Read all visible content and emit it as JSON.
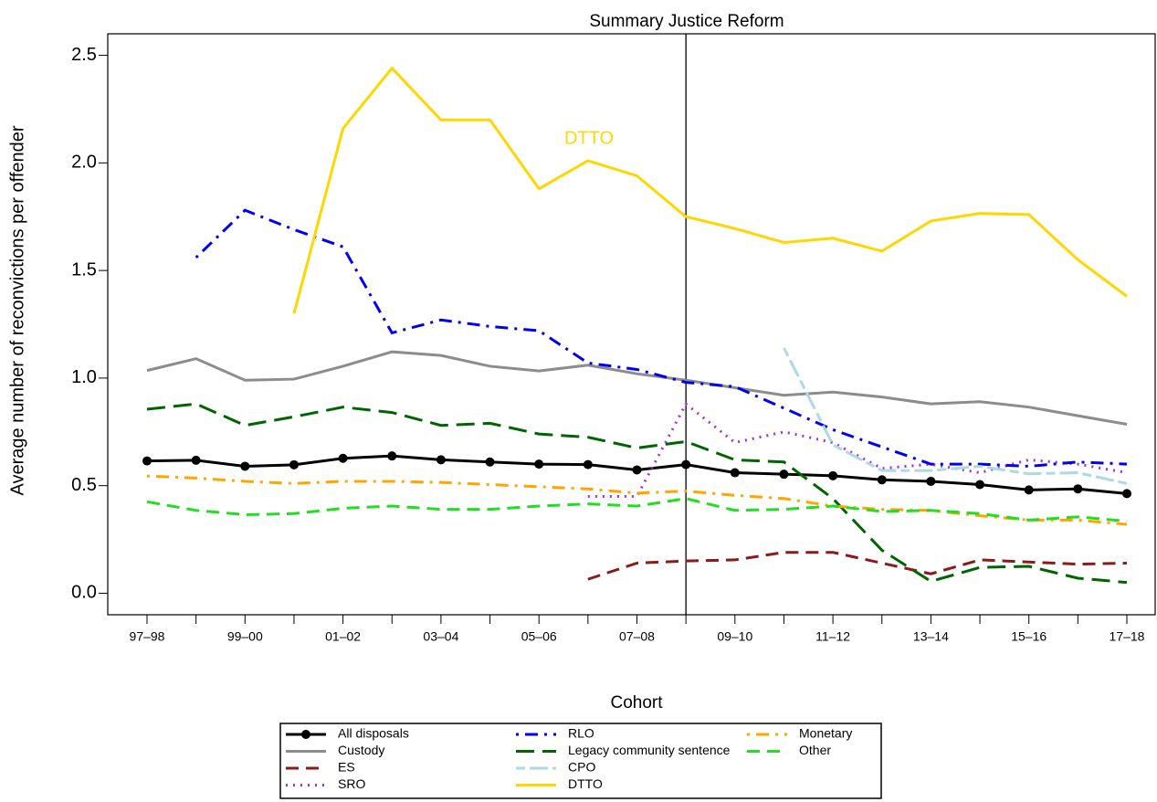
{
  "chart_data": {
    "type": "line",
    "annotations": {
      "reform": "Summary Justice Reform",
      "dtto": "DTTO"
    },
    "xlabel": "Cohort",
    "ylabel": "Average number of reconvictions per offender",
    "categories": [
      "97–98",
      null,
      "99–00",
      null,
      "01–02",
      null,
      "03–04",
      null,
      "05–06",
      null,
      "07–08",
      null,
      "09–10",
      null,
      "11–12",
      null,
      "13–14",
      null,
      "15–16",
      null,
      "17–18"
    ],
    "ylim": [
      -0.1,
      2.6
    ],
    "yticks": [
      {
        "value": 0,
        "label": "0.0"
      },
      0.5,
      {
        "value": 1,
        "label": "1.0"
      },
      1.5,
      {
        "value": 2,
        "label": "2.0"
      },
      2.5
    ],
    "reform_index": 11,
    "series": [
      {
        "name": "All disposals",
        "color": "#000000",
        "dash": "solid",
        "marker": "circle",
        "values": [
          0.615,
          0.618,
          0.59,
          0.597,
          0.627,
          0.638,
          0.62,
          0.61,
          0.6,
          0.598,
          0.573,
          0.598,
          0.56,
          0.553,
          0.546,
          0.527,
          0.52,
          0.505,
          0.48,
          0.485,
          0.463
        ]
      },
      {
        "name": "Custody",
        "color": "#8c8c8c",
        "dash": "solid",
        "values": [
          1.035,
          1.09,
          0.99,
          0.995,
          1.055,
          1.122,
          1.105,
          1.055,
          1.033,
          1.06,
          1.02,
          0.99,
          0.955,
          0.92,
          0.935,
          0.912,
          0.88,
          0.89,
          0.865,
          0.825,
          0.785
        ]
      },
      {
        "name": "ES",
        "color": "#8b1a1a",
        "dash": "dashed",
        "values": [
          null,
          null,
          null,
          null,
          null,
          null,
          null,
          null,
          null,
          0.065,
          0.14,
          0.15,
          0.155,
          0.19,
          0.19,
          0.14,
          0.09,
          0.155,
          0.145,
          0.135,
          0.14
        ]
      },
      {
        "name": "SRO",
        "color": "#a030e0",
        "dash": "dotted",
        "values": [
          null,
          null,
          null,
          null,
          null,
          null,
          null,
          null,
          null,
          0.45,
          0.45,
          0.88,
          0.7,
          0.75,
          0.7,
          0.58,
          0.6,
          0.56,
          0.62,
          0.6,
          0.56
        ]
      },
      {
        "name": "RLO",
        "color": "#0000ee",
        "dash": "dotdash",
        "values": [
          null,
          1.56,
          1.78,
          1.69,
          1.61,
          1.21,
          1.27,
          1.24,
          1.22,
          1.07,
          1.04,
          0.98,
          0.96,
          0.86,
          0.76,
          0.68,
          0.6,
          0.6,
          0.59,
          0.61,
          0.6
        ]
      },
      {
        "name": "Legacy community sentence",
        "color": "#006400",
        "dash": "longdash",
        "values": [
          0.855,
          0.88,
          0.78,
          0.82,
          0.865,
          0.84,
          0.78,
          0.79,
          0.74,
          0.725,
          0.675,
          0.705,
          0.62,
          0.61,
          0.44,
          0.2,
          0.055,
          0.12,
          0.125,
          0.07,
          0.05
        ]
      },
      {
        "name": "CPO",
        "color": "#add8e6",
        "dash": "twodash",
        "values": [
          null,
          null,
          null,
          null,
          null,
          null,
          null,
          null,
          null,
          null,
          null,
          null,
          null,
          1.14,
          0.69,
          0.57,
          0.57,
          0.59,
          0.555,
          0.56,
          0.51
        ]
      },
      {
        "name": "DTTO",
        "color": "#ffd700",
        "dash": "solid",
        "values": [
          null,
          null,
          null,
          1.3,
          2.16,
          2.44,
          2.2,
          2.2,
          1.88,
          2.01,
          1.94,
          1.75,
          1.695,
          1.63,
          1.65,
          1.59,
          1.73,
          1.765,
          1.76,
          1.55,
          1.38
        ]
      },
      {
        "name": "Monetary",
        "color": "#ffa500",
        "dash": "dotdash",
        "values": [
          0.545,
          0.535,
          0.52,
          0.51,
          0.52,
          0.52,
          0.515,
          0.505,
          0.495,
          0.485,
          0.465,
          0.475,
          0.455,
          0.44,
          0.405,
          0.39,
          0.385,
          0.36,
          0.34,
          0.34,
          0.32
        ]
      },
      {
        "name": "Other",
        "color": "#22dd22",
        "dash": "dashed",
        "values": [
          0.425,
          0.385,
          0.365,
          0.37,
          0.395,
          0.405,
          0.39,
          0.39,
          0.405,
          0.415,
          0.405,
          0.44,
          0.385,
          0.39,
          0.405,
          0.38,
          0.385,
          0.37,
          0.34,
          0.355,
          0.335
        ]
      }
    ]
  }
}
